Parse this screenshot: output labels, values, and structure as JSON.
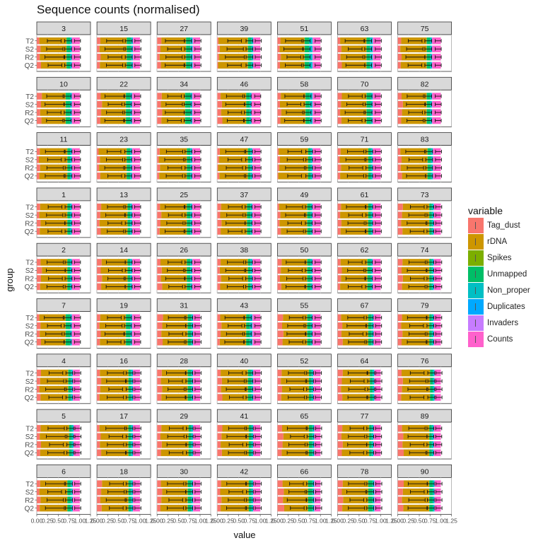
{
  "chart_data": {
    "type": "bar",
    "orientation": "horizontal",
    "stacked": true,
    "title": "Sequence counts (normalised)",
    "xlabel": "value",
    "ylabel": "group",
    "xlim": [
      0,
      1.25
    ],
    "x_ticks": [
      "0.00",
      "0.25",
      "0.50",
      "0.75",
      "1.00",
      "1.25"
    ],
    "groups": [
      "T2",
      "S2",
      "R2",
      "Q2"
    ],
    "legend_title": "variable",
    "legend_position": "right",
    "variables": [
      {
        "name": "Tag_dust",
        "color": "#F8766D"
      },
      {
        "name": "rDNA",
        "color": "#CD9600"
      },
      {
        "name": "Spikes",
        "color": "#7CAE00"
      },
      {
        "name": "Unmapped",
        "color": "#00BE67"
      },
      {
        "name": "Non_proper",
        "color": "#00BFC4"
      },
      {
        "name": "Duplicates",
        "color": "#00A9FF"
      },
      {
        "name": "Invaders",
        "color": "#C77CFF"
      },
      {
        "name": "Counts",
        "color": "#FF61CC"
      }
    ],
    "facet_labels": [
      "3",
      "15",
      "27",
      "39",
      "51",
      "63",
      "75",
      "10",
      "22",
      "34",
      "46",
      "58",
      "70",
      "82",
      "11",
      "23",
      "35",
      "47",
      "59",
      "71",
      "83",
      "1",
      "13",
      "25",
      "37",
      "49",
      "61",
      "73",
      "2",
      "14",
      "26",
      "38",
      "50",
      "62",
      "74",
      "7",
      "19",
      "31",
      "43",
      "55",
      "67",
      "79",
      "4",
      "16",
      "28",
      "40",
      "52",
      "64",
      "76",
      "5",
      "17",
      "29",
      "41",
      "65",
      "77",
      "89",
      "6",
      "18",
      "30",
      "42",
      "66",
      "78",
      "90"
    ],
    "facets": [
      {
        "label": "3",
        "t": 0.08,
        "r": 0.62,
        "u": 0.08,
        "n": 0.04,
        "c": 0.18
      },
      {
        "label": "15",
        "t": 0.08,
        "r": 0.62,
        "u": 0.1,
        "n": 0.04,
        "c": 0.16
      },
      {
        "label": "27",
        "t": 0.08,
        "r": 0.6,
        "u": 0.1,
        "n": 0.05,
        "c": 0.17
      },
      {
        "label": "39",
        "t": 0.04,
        "r": 0.68,
        "u": 0.08,
        "n": 0.04,
        "c": 0.16
      },
      {
        "label": "51",
        "t": 0.06,
        "r": 0.58,
        "u": 0.1,
        "n": 0.08,
        "c": 0.18
      },
      {
        "label": "63",
        "t": 0.08,
        "r": 0.6,
        "u": 0.08,
        "n": 0.06,
        "c": 0.18
      },
      {
        "label": "75",
        "t": 0.08,
        "r": 0.6,
        "u": 0.08,
        "n": 0.04,
        "c": 0.2
      },
      {
        "label": "10",
        "t": 0.1,
        "r": 0.58,
        "u": 0.1,
        "n": 0.04,
        "c": 0.18
      },
      {
        "label": "22",
        "t": 0.1,
        "r": 0.58,
        "u": 0.1,
        "n": 0.04,
        "c": 0.18
      },
      {
        "label": "34",
        "t": 0.1,
        "r": 0.56,
        "u": 0.12,
        "n": 0.04,
        "c": 0.18
      },
      {
        "label": "46",
        "t": 0.1,
        "r": 0.58,
        "u": 0.08,
        "n": 0.04,
        "c": 0.2
      },
      {
        "label": "58",
        "t": 0.08,
        "r": 0.58,
        "u": 0.1,
        "n": 0.06,
        "c": 0.18
      },
      {
        "label": "70",
        "t": 0.08,
        "r": 0.6,
        "u": 0.1,
        "n": 0.04,
        "c": 0.18
      },
      {
        "label": "82",
        "t": 0.1,
        "r": 0.58,
        "u": 0.08,
        "n": 0.04,
        "c": 0.2
      },
      {
        "label": "11",
        "t": 0.06,
        "r": 0.66,
        "u": 0.06,
        "n": 0.04,
        "c": 0.18
      },
      {
        "label": "23",
        "t": 0.06,
        "r": 0.64,
        "u": 0.08,
        "n": 0.04,
        "c": 0.18
      },
      {
        "label": "35",
        "t": 0.06,
        "r": 0.64,
        "u": 0.08,
        "n": 0.04,
        "c": 0.18
      },
      {
        "label": "47",
        "t": 0.04,
        "r": 0.68,
        "u": 0.06,
        "n": 0.04,
        "c": 0.18
      },
      {
        "label": "59",
        "t": 0.04,
        "r": 0.68,
        "u": 0.06,
        "n": 0.04,
        "c": 0.18
      },
      {
        "label": "71",
        "t": 0.06,
        "r": 0.66,
        "u": 0.06,
        "n": 0.04,
        "c": 0.18
      },
      {
        "label": "83",
        "t": 0.08,
        "r": 0.62,
        "u": 0.08,
        "n": 0.04,
        "c": 0.18
      },
      {
        "label": "1",
        "t": 0.08,
        "r": 0.64,
        "u": 0.06,
        "n": 0.04,
        "c": 0.18
      },
      {
        "label": "13",
        "t": 0.08,
        "r": 0.64,
        "u": 0.06,
        "n": 0.04,
        "c": 0.18
      },
      {
        "label": "25",
        "t": 0.08,
        "r": 0.62,
        "u": 0.08,
        "n": 0.04,
        "c": 0.18
      },
      {
        "label": "37",
        "t": 0.08,
        "r": 0.62,
        "u": 0.08,
        "n": 0.04,
        "c": 0.18
      },
      {
        "label": "49",
        "t": 0.06,
        "r": 0.64,
        "u": 0.08,
        "n": 0.04,
        "c": 0.18
      },
      {
        "label": "61",
        "t": 0.08,
        "r": 0.64,
        "u": 0.06,
        "n": 0.04,
        "c": 0.18
      },
      {
        "label": "73",
        "t": 0.1,
        "r": 0.64,
        "u": 0.06,
        "n": 0.04,
        "c": 0.16
      },
      {
        "label": "2",
        "t": 0.1,
        "r": 0.62,
        "u": 0.06,
        "n": 0.04,
        "c": 0.18
      },
      {
        "label": "14",
        "t": 0.1,
        "r": 0.62,
        "u": 0.06,
        "n": 0.04,
        "c": 0.18
      },
      {
        "label": "26",
        "t": 0.1,
        "r": 0.6,
        "u": 0.08,
        "n": 0.04,
        "c": 0.18
      },
      {
        "label": "38",
        "t": 0.08,
        "r": 0.64,
        "u": 0.06,
        "n": 0.04,
        "c": 0.18
      },
      {
        "label": "50",
        "t": 0.08,
        "r": 0.62,
        "u": 0.08,
        "n": 0.04,
        "c": 0.18
      },
      {
        "label": "62",
        "t": 0.08,
        "r": 0.62,
        "u": 0.08,
        "n": 0.04,
        "c": 0.18
      },
      {
        "label": "74",
        "t": 0.1,
        "r": 0.64,
        "u": 0.06,
        "n": 0.04,
        "c": 0.16
      },
      {
        "label": "7",
        "t": 0.08,
        "r": 0.6,
        "u": 0.1,
        "n": 0.04,
        "c": 0.18
      },
      {
        "label": "19",
        "t": 0.08,
        "r": 0.6,
        "u": 0.1,
        "n": 0.04,
        "c": 0.18
      },
      {
        "label": "31",
        "t": 0.12,
        "r": 0.6,
        "u": 0.08,
        "n": 0.04,
        "c": 0.16
      },
      {
        "label": "43",
        "t": 0.08,
        "r": 0.6,
        "u": 0.08,
        "n": 0.06,
        "c": 0.18
      },
      {
        "label": "55",
        "t": 0.12,
        "r": 0.58,
        "u": 0.08,
        "n": 0.04,
        "c": 0.18
      },
      {
        "label": "67",
        "t": 0.1,
        "r": 0.62,
        "u": 0.08,
        "n": 0.04,
        "c": 0.16
      },
      {
        "label": "79",
        "t": 0.1,
        "r": 0.64,
        "u": 0.06,
        "n": 0.04,
        "c": 0.16
      },
      {
        "label": "4",
        "t": 0.08,
        "r": 0.66,
        "u": 0.06,
        "n": 0.04,
        "c": 0.16
      },
      {
        "label": "16",
        "t": 0.08,
        "r": 0.66,
        "u": 0.06,
        "n": 0.04,
        "c": 0.16
      },
      {
        "label": "28",
        "t": 0.1,
        "r": 0.62,
        "u": 0.08,
        "n": 0.04,
        "c": 0.16
      },
      {
        "label": "40",
        "t": 0.1,
        "r": 0.62,
        "u": 0.08,
        "n": 0.04,
        "c": 0.16
      },
      {
        "label": "52",
        "t": 0.1,
        "r": 0.64,
        "u": 0.06,
        "n": 0.04,
        "c": 0.16
      },
      {
        "label": "64",
        "t": 0.1,
        "r": 0.66,
        "u": 0.06,
        "n": 0.04,
        "c": 0.14
      },
      {
        "label": "76",
        "t": 0.1,
        "r": 0.66,
        "u": 0.06,
        "n": 0.04,
        "c": 0.14
      },
      {
        "label": "5",
        "t": 0.08,
        "r": 0.68,
        "u": 0.06,
        "n": 0.04,
        "c": 0.14
      },
      {
        "label": "17",
        "t": 0.08,
        "r": 0.66,
        "u": 0.06,
        "n": 0.04,
        "c": 0.16
      },
      {
        "label": "29",
        "t": 0.1,
        "r": 0.64,
        "u": 0.06,
        "n": 0.04,
        "c": 0.16
      },
      {
        "label": "41",
        "t": 0.1,
        "r": 0.64,
        "u": 0.06,
        "n": 0.04,
        "c": 0.16
      },
      {
        "label": "65",
        "t": 0.12,
        "r": 0.62,
        "u": 0.08,
        "n": 0.04,
        "c": 0.14
      },
      {
        "label": "77",
        "t": 0.1,
        "r": 0.64,
        "u": 0.06,
        "n": 0.04,
        "c": 0.16
      },
      {
        "label": "89",
        "t": 0.12,
        "r": 0.62,
        "u": 0.06,
        "n": 0.04,
        "c": 0.16
      },
      {
        "label": "6",
        "t": 0.08,
        "r": 0.64,
        "u": 0.08,
        "n": 0.04,
        "c": 0.16
      },
      {
        "label": "18",
        "t": 0.1,
        "r": 0.64,
        "u": 0.06,
        "n": 0.04,
        "c": 0.16
      },
      {
        "label": "30",
        "t": 0.1,
        "r": 0.62,
        "u": 0.08,
        "n": 0.04,
        "c": 0.16
      },
      {
        "label": "42",
        "t": 0.08,
        "r": 0.66,
        "u": 0.06,
        "n": 0.04,
        "c": 0.16
      },
      {
        "label": "66",
        "t": 0.14,
        "r": 0.58,
        "u": 0.1,
        "n": 0.04,
        "c": 0.14
      },
      {
        "label": "78",
        "t": 0.12,
        "r": 0.6,
        "u": 0.1,
        "n": 0.04,
        "c": 0.14
      },
      {
        "label": "90",
        "t": 0.12,
        "r": 0.62,
        "u": 0.08,
        "n": 0.04,
        "c": 0.14
      }
    ]
  }
}
